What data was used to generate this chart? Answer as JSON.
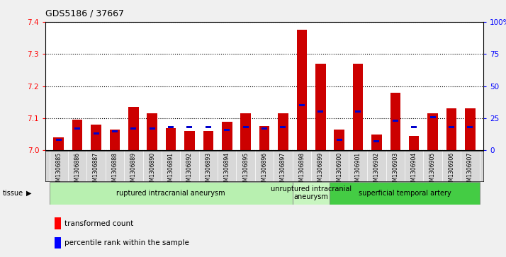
{
  "title": "GDS5186 / 37667",
  "samples": [
    "GSM1306885",
    "GSM1306886",
    "GSM1306887",
    "GSM1306888",
    "GSM1306889",
    "GSM1306890",
    "GSM1306891",
    "GSM1306892",
    "GSM1306893",
    "GSM1306894",
    "GSM1306895",
    "GSM1306896",
    "GSM1306897",
    "GSM1306898",
    "GSM1306899",
    "GSM1306900",
    "GSM1306901",
    "GSM1306902",
    "GSM1306903",
    "GSM1306904",
    "GSM1306905",
    "GSM1306906",
    "GSM1306907"
  ],
  "red_values": [
    7.04,
    7.095,
    7.08,
    7.065,
    7.135,
    7.115,
    7.07,
    7.06,
    7.06,
    7.09,
    7.115,
    7.075,
    7.115,
    7.375,
    7.27,
    7.065,
    7.27,
    7.05,
    7.18,
    7.045,
    7.115,
    7.13,
    7.13
  ],
  "blue_percentiles": [
    8,
    17,
    13,
    15,
    17,
    17,
    18,
    18,
    18,
    16,
    18,
    17,
    18,
    35,
    30,
    8,
    30,
    7,
    23,
    18,
    26,
    18,
    18
  ],
  "ylim_left": [
    7.0,
    7.4
  ],
  "ylim_right": [
    0,
    100
  ],
  "yticks_left": [
    7.0,
    7.1,
    7.2,
    7.3,
    7.4
  ],
  "yticks_right": [
    0,
    25,
    50,
    75,
    100
  ],
  "ytick_labels_right": [
    "0",
    "25",
    "50",
    "75",
    "100%"
  ],
  "groups": [
    {
      "label": "ruptured intracranial aneurysm",
      "start": 0,
      "end": 13,
      "color": "#b8f0b0"
    },
    {
      "label": "unruptured intracranial\naneurysm",
      "start": 13,
      "end": 15,
      "color": "#c8f5c0"
    },
    {
      "label": "superficial temporal artery",
      "start": 15,
      "end": 23,
      "color": "#44cc44"
    }
  ],
  "bar_color": "#cc0000",
  "percentile_color": "#0000cc",
  "xarea_bg": "#d8d8d8",
  "plot_bg": "#ffffff",
  "baseline": 7.0,
  "bar_width": 0.55
}
